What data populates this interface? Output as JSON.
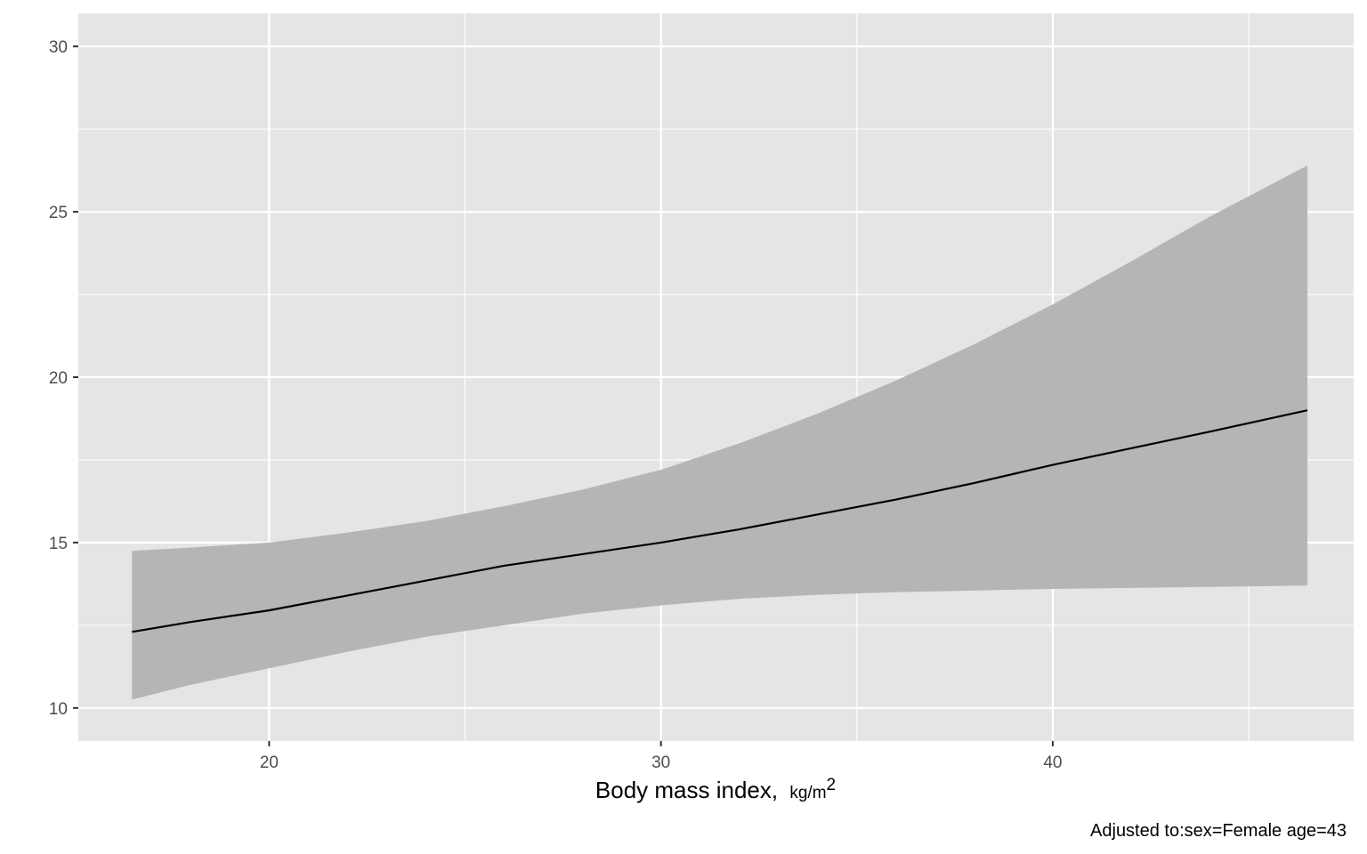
{
  "chart_data": {
    "type": "line",
    "x": [
      16.5,
      18,
      20,
      22,
      24,
      26,
      28,
      30,
      32,
      34,
      36,
      38,
      40,
      42,
      44,
      46.5
    ],
    "series": [
      {
        "values": [
          12.3,
          12.6,
          12.95,
          13.4,
          13.85,
          14.3,
          14.65,
          15.0,
          15.4,
          15.85,
          16.3,
          16.8,
          17.35,
          17.85,
          18.35,
          19.0
        ],
        "lower": [
          10.25,
          10.7,
          11.2,
          11.7,
          12.15,
          12.5,
          12.85,
          13.1,
          13.3,
          13.42,
          13.5,
          13.55,
          13.6,
          13.63,
          13.66,
          13.7
        ],
        "upper": [
          14.75,
          14.85,
          15.0,
          15.3,
          15.65,
          16.1,
          16.6,
          17.2,
          18.0,
          18.9,
          19.9,
          21.0,
          22.2,
          23.5,
          24.85,
          26.4
        ]
      }
    ],
    "xlabel": "Body mass index,",
    "xlabel_unit_base": "kg/m",
    "xlabel_unit_sup": "2",
    "caption": "Adjusted to:sex=Female age=43",
    "xlim": [
      15.13,
      47.68
    ],
    "ylim": [
      9.0,
      31.0
    ],
    "x_ticks": [
      20,
      30,
      40
    ],
    "y_ticks": [
      10,
      15,
      20,
      25,
      30
    ],
    "x_ticks_minor": [
      25,
      35,
      45
    ],
    "y_ticks_minor": [
      12.5,
      17.5,
      22.5,
      27.5
    ],
    "grid": true,
    "colors": {
      "panel": "#e5e5e5",
      "grid": "#ffffff",
      "ribbon": "#b5b5b5",
      "line": "#000000",
      "tick": "#333333"
    }
  }
}
